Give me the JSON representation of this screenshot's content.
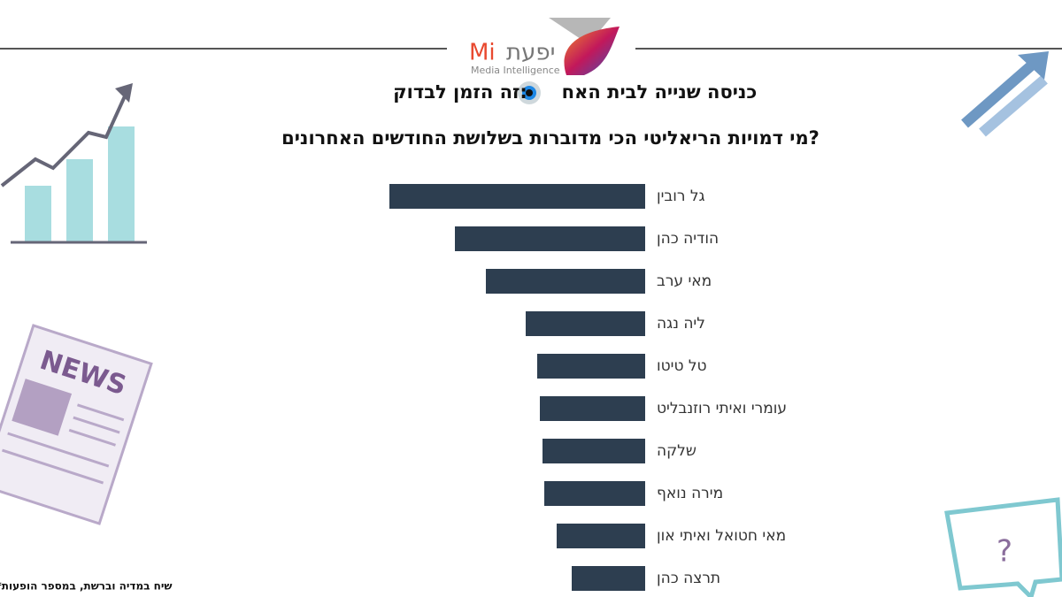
{
  "logo": {
    "name": "יפעת",
    "mark": "Mi",
    "tagline": "Media Intelligence"
  },
  "decor_news": "NEWS",
  "chart_data": {
    "type": "bar",
    "orientation": "horizontal",
    "title_part1": "כניסה שנייה לבית האח",
    "title_part2": "זה הזמן לבדוק:",
    "subtitle": "מי דמויות הריאליטי הכי מדוברות בשלושת החודשים האחרונים?",
    "note": "*שיח במדיה וברשת, במספר הופעות",
    "categories": [
      "גל רובין",
      "הודיה כהן",
      "מאי ערב",
      "ליה נגה",
      "טל טיטו",
      "עומרי ואיתי רוזנבליט",
      "שלקה",
      "מירה נואף",
      "מאי חטואל ואיתי און",
      "תרצה כהן"
    ],
    "values": [
      289,
      215,
      180,
      135,
      122,
      119,
      116,
      114,
      100,
      83
    ],
    "color": "#2d3e50"
  }
}
